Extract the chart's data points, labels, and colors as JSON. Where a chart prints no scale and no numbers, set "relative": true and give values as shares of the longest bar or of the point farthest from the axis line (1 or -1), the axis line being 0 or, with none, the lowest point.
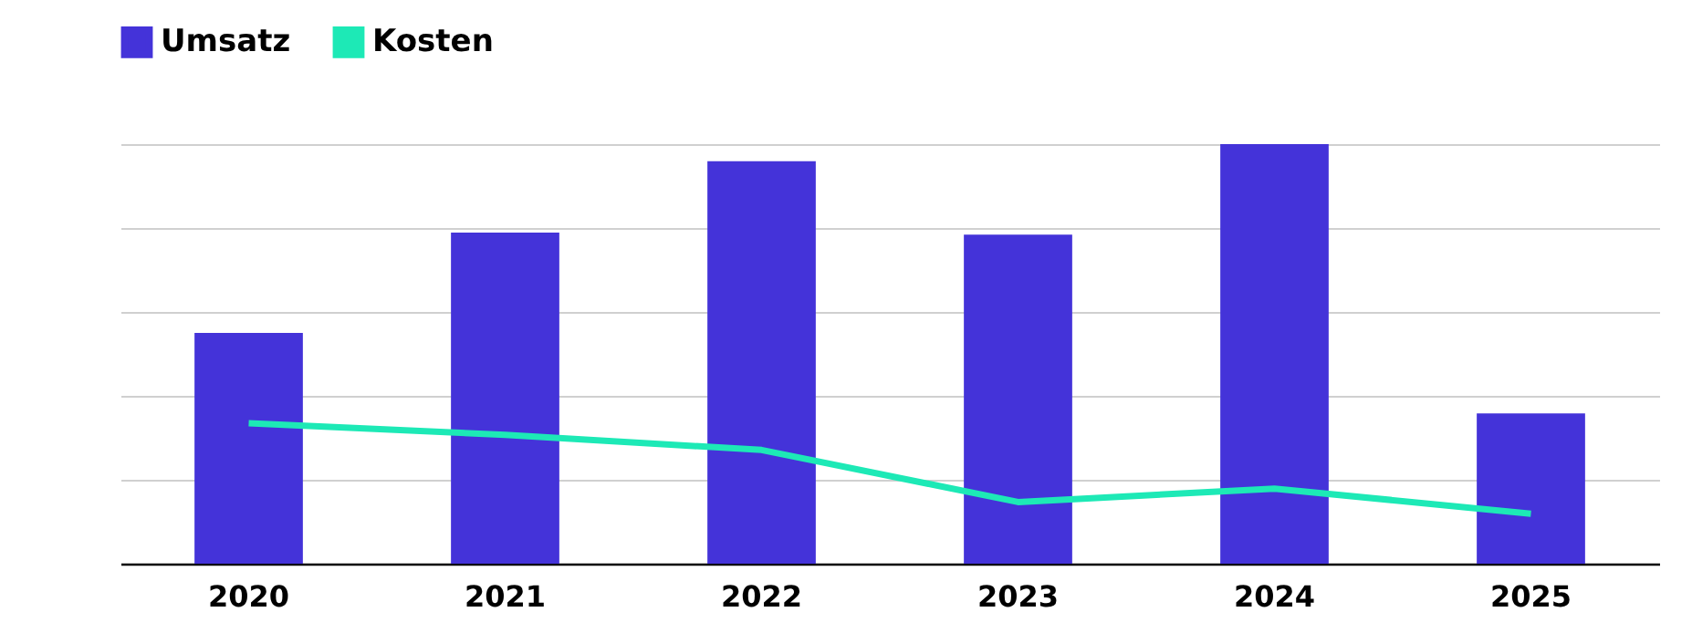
{
  "chart_data": {
    "type": "bar",
    "categories": [
      "2020",
      "2021",
      "2022",
      "2023",
      "2024",
      "2025"
    ],
    "relative": true,
    "grid": "y",
    "legend": "top",
    "series": [
      {
        "name": "Umsatz",
        "color": "#4433d9",
        "values": [
          0.55,
          0.789,
          0.959,
          0.784,
          1,
          0.358
        ]
      },
      {
        "name": "Kosten",
        "type": "line",
        "color": "#1de9b6",
        "values": [
          0.335,
          0.307,
          0.271,
          0.147,
          0.179,
          0.119
        ]
      }
    ]
  }
}
